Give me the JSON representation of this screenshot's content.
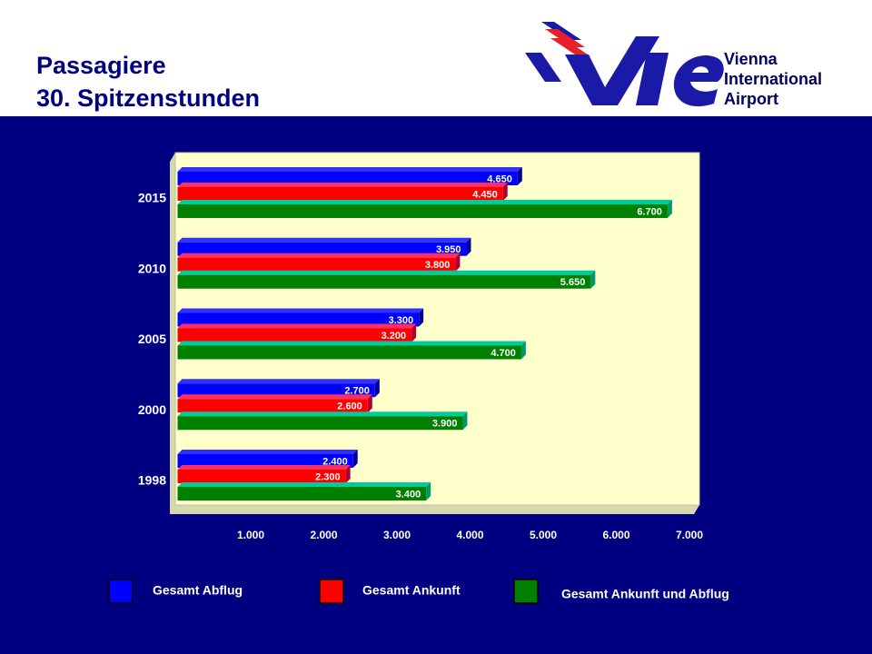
{
  "logo": {
    "lines": [
      "Vienna",
      "International",
      "Airport"
    ]
  },
  "chart_data": {
    "type": "hbar3d",
    "title": "Passagiere",
    "subtitle": "30. Spitzenstunden",
    "categories": [
      "1998",
      "2000",
      "2005",
      "2010",
      "2015"
    ],
    "series": [
      {
        "name": "Gesamt Abflug",
        "color": "#0000ff",
        "values": [
          2400,
          2700,
          3300,
          3950,
          4650
        ],
        "value_labels": [
          "2.400",
          "2.700",
          "3.300",
          "3.950",
          "4.650"
        ]
      },
      {
        "name": "Gesamt Ankunft",
        "color": "#ff0000",
        "values": [
          2300,
          2600,
          3200,
          3800,
          4450
        ],
        "value_labels": [
          "2.300",
          "2.600",
          "3.200",
          "3.800",
          "4.450"
        ]
      },
      {
        "name": "Gesamt Ankunft und Abflug",
        "color": "#008000",
        "values": [
          3400,
          3900,
          4700,
          5650,
          6700
        ],
        "value_labels": [
          "3.400",
          "3.900",
          "4.700",
          "5.650",
          "6.700"
        ]
      }
    ],
    "xlim": [
      0,
      7000
    ],
    "xticks": [
      {
        "value": 1000,
        "label": "1.000"
      },
      {
        "value": 2000,
        "label": "2.000"
      },
      {
        "value": 3000,
        "label": "3.000"
      },
      {
        "value": 4000,
        "label": "4.000"
      },
      {
        "value": 5000,
        "label": "5.000"
      },
      {
        "value": 6000,
        "label": "6.000"
      },
      {
        "value": 7000,
        "label": "7.000"
      }
    ],
    "grid": false,
    "legend": "bottom"
  }
}
